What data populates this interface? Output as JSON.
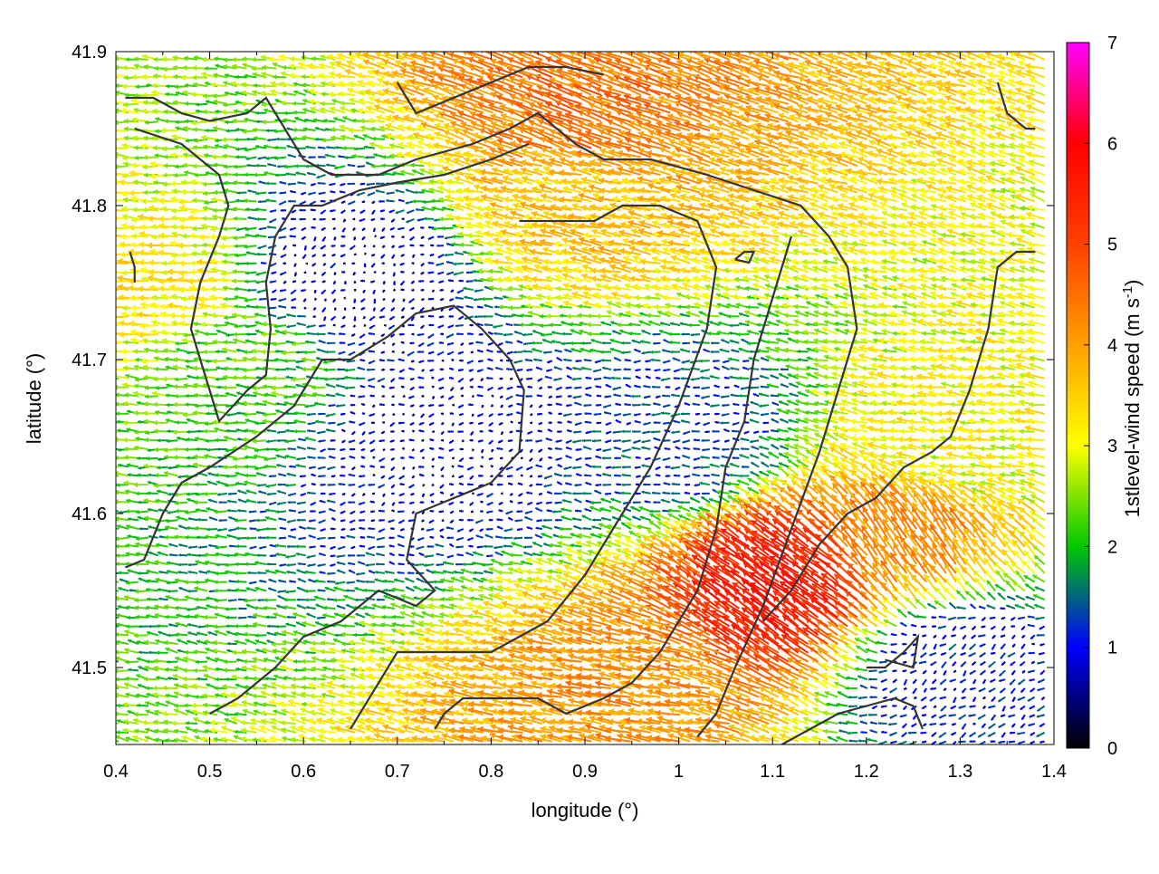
{
  "chart_data": {
    "type": "vector-field",
    "xlabel": "longitude (°)",
    "ylabel": "latitude (°)",
    "xlim": [
      0.4,
      1.4
    ],
    "ylim": [
      41.45,
      41.9
    ],
    "xticks": [
      0.4,
      0.5,
      0.6,
      0.7,
      0.8,
      0.9,
      1.0,
      1.1,
      1.2,
      1.3,
      1.4
    ],
    "xtick_labels": [
      "0.4",
      "0.5",
      "0.6",
      "0.7",
      "0.8",
      "0.9",
      "1",
      "1.1",
      "1.2",
      "1.3",
      "1.4"
    ],
    "yticks": [
      41.5,
      41.6,
      41.7,
      41.8,
      41.9
    ],
    "ytick_labels": [
      "41.5",
      "41.6",
      "41.7",
      "41.8",
      "41.9"
    ],
    "colorbar": {
      "label": "1stlevel-wind speed (m s",
      "label_unit_exponent": "-1",
      "label_close": ")",
      "range": [
        0,
        7
      ],
      "ticks": [
        0,
        1,
        2,
        3,
        4,
        5,
        6,
        7
      ],
      "tick_labels": [
        "0",
        "1",
        "2",
        "3",
        "4",
        "5",
        "6",
        "7"
      ],
      "colors": [
        "#000000",
        "#0000ff",
        "#00c800",
        "#ffff00",
        "#ffa000",
        "#ff4000",
        "#ff0000",
        "#ff00ff"
      ]
    },
    "field_description_points": [
      {
        "lon": 0.45,
        "lat": 41.75,
        "u": -3.2,
        "v": 0.2
      },
      {
        "lon": 0.55,
        "lat": 41.7,
        "u": -2.2,
        "v": 0.2
      },
      {
        "lon": 0.65,
        "lat": 41.75,
        "u": -0.4,
        "v": -0.4
      },
      {
        "lon": 0.75,
        "lat": 41.65,
        "u": -0.6,
        "v": -0.2
      },
      {
        "lon": 0.9,
        "lat": 41.8,
        "u": -3.5,
        "v": 0.8
      },
      {
        "lon": 0.9,
        "lat": 41.86,
        "u": -4.2,
        "v": 1.6
      },
      {
        "lon": 1.0,
        "lat": 41.65,
        "u": -1.2,
        "v": 0.0
      },
      {
        "lon": 1.12,
        "lat": 41.55,
        "u": -4.6,
        "v": 3.2
      },
      {
        "lon": 1.25,
        "lat": 41.58,
        "u": -2.4,
        "v": 3.4
      },
      {
        "lon": 1.3,
        "lat": 41.65,
        "u": -3.0,
        "v": 0.4
      },
      {
        "lon": 0.95,
        "lat": 41.48,
        "u": -4.0,
        "v": 0.8
      },
      {
        "lon": 1.3,
        "lat": 41.5,
        "u": -0.8,
        "v": -0.6
      }
    ],
    "coastline_segments": [
      [
        [
          0.41,
          41.87
        ],
        [
          0.44,
          41.87
        ],
        [
          0.47,
          41.86
        ],
        [
          0.5,
          41.855
        ],
        [
          0.54,
          41.86
        ],
        [
          0.56,
          41.87
        ],
        [
          0.6,
          41.83
        ],
        [
          0.63,
          41.82
        ],
        [
          0.68,
          41.82
        ],
        [
          0.72,
          41.83
        ],
        [
          0.78,
          41.84
        ],
        [
          0.82,
          41.85
        ],
        [
          0.85,
          41.86
        ],
        [
          0.89,
          41.84
        ],
        [
          0.92,
          41.83
        ],
        [
          0.97,
          41.83
        ],
        [
          1.03,
          41.82
        ],
        [
          1.08,
          41.81
        ],
        [
          1.13,
          41.8
        ],
        [
          1.16,
          41.78
        ],
        [
          1.18,
          41.76
        ],
        [
          1.19,
          41.72
        ],
        [
          1.17,
          41.68
        ],
        [
          1.15,
          41.64
        ],
        [
          1.12,
          41.59
        ],
        [
          1.09,
          41.54
        ],
        [
          1.06,
          41.5
        ],
        [
          1.04,
          41.47
        ],
        [
          1.02,
          41.455
        ]
      ],
      [
        [
          0.42,
          41.85
        ],
        [
          0.47,
          41.84
        ],
        [
          0.51,
          41.82
        ],
        [
          0.52,
          41.8
        ],
        [
          0.51,
          41.78
        ],
        [
          0.49,
          41.75
        ],
        [
          0.48,
          41.72
        ],
        [
          0.49,
          41.7
        ],
        [
          0.51,
          41.66
        ],
        [
          0.54,
          41.68
        ],
        [
          0.56,
          41.69
        ],
        [
          0.565,
          41.72
        ],
        [
          0.56,
          41.75
        ],
        [
          0.57,
          41.78
        ],
        [
          0.59,
          41.8
        ],
        [
          0.62,
          41.8
        ],
        [
          0.66,
          41.81
        ],
        [
          0.7,
          41.815
        ],
        [
          0.75,
          41.82
        ],
        [
          0.8,
          41.83
        ],
        [
          0.84,
          41.84
        ]
      ],
      [
        [
          0.41,
          41.565
        ],
        [
          0.43,
          41.57
        ],
        [
          0.45,
          41.6
        ],
        [
          0.47,
          41.62
        ],
        [
          0.5,
          41.63
        ],
        [
          0.55,
          41.65
        ],
        [
          0.59,
          41.67
        ],
        [
          0.62,
          41.7
        ],
        [
          0.65,
          41.7
        ],
        [
          0.69,
          41.715
        ],
        [
          0.72,
          41.73
        ],
        [
          0.76,
          41.735
        ],
        [
          0.79,
          41.72
        ],
        [
          0.82,
          41.7
        ],
        [
          0.835,
          41.68
        ],
        [
          0.83,
          41.64
        ],
        [
          0.8,
          41.62
        ],
        [
          0.76,
          41.61
        ],
        [
          0.72,
          41.6
        ],
        [
          0.71,
          41.57
        ],
        [
          0.74,
          41.55
        ],
        [
          0.72,
          41.54
        ],
        [
          0.68,
          41.55
        ],
        [
          0.64,
          41.53
        ],
        [
          0.6,
          41.52
        ],
        [
          0.57,
          41.5
        ],
        [
          0.53,
          41.48
        ],
        [
          0.5,
          41.47
        ]
      ],
      [
        [
          0.65,
          41.46
        ],
        [
          0.68,
          41.49
        ],
        [
          0.7,
          41.51
        ],
        [
          0.74,
          41.51
        ],
        [
          0.8,
          41.51
        ],
        [
          0.86,
          41.53
        ],
        [
          0.9,
          41.56
        ],
        [
          0.94,
          41.6
        ],
        [
          0.97,
          41.63
        ],
        [
          1.0,
          41.67
        ],
        [
          1.03,
          41.72
        ],
        [
          1.04,
          41.76
        ],
        [
          1.02,
          41.79
        ],
        [
          0.98,
          41.8
        ],
        [
          0.94,
          41.8
        ],
        [
          0.91,
          41.79
        ],
        [
          0.88,
          41.79
        ],
        [
          0.85,
          41.79
        ],
        [
          0.83,
          41.79
        ]
      ],
      [
        [
          0.74,
          41.46
        ],
        [
          0.75,
          41.47
        ],
        [
          0.77,
          41.48
        ],
        [
          0.81,
          41.48
        ],
        [
          0.85,
          41.48
        ],
        [
          0.88,
          41.47
        ],
        [
          0.92,
          41.48
        ],
        [
          0.95,
          41.49
        ],
        [
          0.98,
          41.51
        ],
        [
          1.0,
          41.53
        ],
        [
          1.02,
          41.55
        ],
        [
          1.04,
          41.59
        ],
        [
          1.05,
          41.63
        ],
        [
          1.07,
          41.66
        ],
        [
          1.08,
          41.7
        ],
        [
          1.1,
          41.74
        ],
        [
          1.12,
          41.78
        ]
      ],
      [
        [
          1.11,
          41.45
        ],
        [
          1.14,
          41.46
        ],
        [
          1.17,
          41.47
        ],
        [
          1.2,
          41.475
        ],
        [
          1.23,
          41.48
        ],
        [
          1.25,
          41.475
        ],
        [
          1.26,
          41.46
        ]
      ],
      [
        [
          1.2,
          41.5
        ],
        [
          1.22,
          41.5
        ],
        [
          1.24,
          41.51
        ],
        [
          1.255,
          41.52
        ],
        [
          1.25,
          41.5
        ],
        [
          1.22,
          41.505
        ]
      ],
      [
        [
          1.09,
          41.53
        ],
        [
          1.12,
          41.55
        ],
        [
          1.15,
          41.58
        ],
        [
          1.18,
          41.6
        ],
        [
          1.21,
          41.61
        ],
        [
          1.24,
          41.63
        ],
        [
          1.27,
          41.64
        ],
        [
          1.29,
          41.65
        ],
        [
          1.31,
          41.68
        ],
        [
          1.33,
          41.72
        ],
        [
          1.34,
          41.76
        ],
        [
          1.36,
          41.77
        ],
        [
          1.38,
          41.77
        ]
      ],
      [
        [
          1.34,
          41.88
        ],
        [
          1.35,
          41.86
        ],
        [
          1.37,
          41.85
        ],
        [
          1.38,
          41.85
        ]
      ],
      [
        [
          0.415,
          41.77
        ],
        [
          0.42,
          41.76
        ],
        [
          0.42,
          41.75
        ]
      ],
      [
        [
          0.7,
          41.88
        ],
        [
          0.72,
          41.86
        ],
        [
          0.76,
          41.87
        ],
        [
          0.8,
          41.88
        ],
        [
          0.84,
          41.89
        ],
        [
          0.88,
          41.89
        ],
        [
          0.92,
          41.885
        ]
      ],
      [
        [
          1.06,
          41.765
        ],
        [
          1.075,
          41.763
        ],
        [
          1.08,
          41.77
        ],
        [
          1.07,
          41.77
        ],
        [
          1.06,
          41.765
        ]
      ]
    ]
  }
}
